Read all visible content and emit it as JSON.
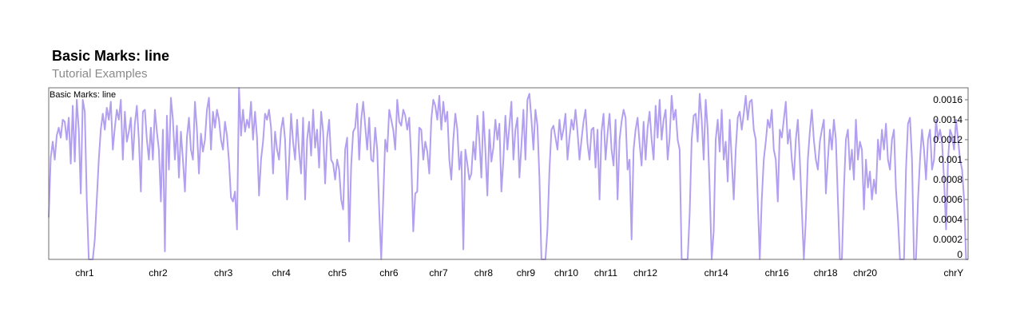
{
  "header": {
    "title": "Basic Marks: line",
    "subtitle": "Tutorial Examples"
  },
  "chart_data": {
    "type": "line",
    "track_label": "Basic Marks: line",
    "line_color": "#b39ff0",
    "y_ticks": [
      0,
      0.0002,
      0.0004,
      0.0006,
      0.0008,
      0.001,
      0.0012,
      0.0014,
      0.0016
    ],
    "y_tick_labels": [
      "0",
      "0.0002",
      "0.0004",
      "0.0006",
      "0.0008",
      "0.001",
      "0.0012",
      "0.0014",
      "0.0016"
    ],
    "ylim": [
      0,
      0.00172
    ],
    "x_labels": [
      {
        "label": "chr1",
        "pos": 0.039
      },
      {
        "label": "chr2",
        "pos": 0.119
      },
      {
        "label": "chr3",
        "pos": 0.19
      },
      {
        "label": "chr4",
        "pos": 0.253
      },
      {
        "label": "chr5",
        "pos": 0.314
      },
      {
        "label": "chr6",
        "pos": 0.37
      },
      {
        "label": "chr7",
        "pos": 0.424
      },
      {
        "label": "chr8",
        "pos": 0.473
      },
      {
        "label": "chr9",
        "pos": 0.519
      },
      {
        "label": "chr10",
        "pos": 0.563
      },
      {
        "label": "chr11",
        "pos": 0.606
      },
      {
        "label": "chr12",
        "pos": 0.649
      },
      {
        "label": "chr14",
        "pos": 0.726
      },
      {
        "label": "chr16",
        "pos": 0.792
      },
      {
        "label": "chr18",
        "pos": 0.845
      },
      {
        "label": "chr20",
        "pos": 0.888
      },
      {
        "label": "chrY",
        "pos": 0.995
      }
    ],
    "x_zero_ranges": [
      [
        0.039,
        0.045
      ],
      [
        0.338,
        0.341
      ],
      [
        0.508,
        0.518
      ],
      [
        0.668,
        0.678
      ],
      [
        0.713,
        0.719
      ],
      [
        0.787,
        0.793
      ],
      [
        0.836,
        0.842
      ],
      [
        0.895,
        0.902
      ],
      [
        0.914,
        0.918
      ],
      [
        0.992,
        1.0
      ]
    ],
    "values": [
      0.00042,
      0.00102,
      0.00118,
      0.001,
      0.00124,
      0.00132,
      0.00122,
      0.0014,
      0.00138,
      0.0012,
      0.00142,
      0.00096,
      0.00154,
      0.00098,
      0.0016,
      0.0013,
      0.00066,
      0.0016,
      0.00148,
      0.0006,
      0.0,
      0.0,
      0.0,
      0.0002,
      0.0006,
      0.001,
      0.0013,
      0.00146,
      0.0013,
      0.00152,
      0.0014,
      0.00158,
      0.0011,
      0.00132,
      0.0015,
      0.0014,
      0.0016,
      0.001,
      0.00148,
      0.00118,
      0.00128,
      0.00142,
      0.001,
      0.00136,
      0.00154,
      0.0012,
      0.00068,
      0.00148,
      0.0015,
      0.0012,
      0.001,
      0.00132,
      0.001,
      0.0015,
      0.00128,
      0.0011,
      0.00058,
      0.0013,
      8e-05,
      0.00144,
      0.0009,
      0.00162,
      0.0014,
      0.001,
      0.00134,
      0.00082,
      0.00128,
      0.001,
      0.00068,
      0.00122,
      0.00142,
      0.0011,
      0.001,
      0.00158,
      0.0013,
      0.00086,
      0.00126,
      0.00108,
      0.0012,
      0.0015,
      0.00162,
      0.0011,
      0.00148,
      0.00132,
      0.0015,
      0.0014,
      0.0012,
      0.0011,
      0.00138,
      0.00124,
      0.00098,
      0.00062,
      0.00058,
      0.00068,
      0.0003,
      0.00172,
      0.00124,
      0.0015,
      0.00128,
      0.0014,
      0.00132,
      0.00158,
      0.0012,
      0.00148,
      0.00122,
      0.00064,
      0.001,
      0.00118,
      0.00146,
      0.0014,
      0.0015,
      0.00132,
      0.00086,
      0.00128,
      0.0011,
      0.001,
      0.0013,
      0.00142,
      0.0012,
      0.0006,
      0.00098,
      0.00146,
      0.00118,
      0.001,
      0.0014,
      0.00108,
      0.00086,
      0.00142,
      0.0006,
      0.0012,
      0.00138,
      0.00104,
      0.0015,
      0.00112,
      0.0013,
      0.00092,
      0.00148,
      0.00128,
      0.00076,
      0.00122,
      0.0014,
      0.001,
      0.00096,
      0.0008,
      0.001,
      0.0009,
      0.0006,
      0.0005,
      0.0011,
      0.00122,
      0.00018,
      0.00094,
      0.00128,
      0.00132,
      0.00156,
      0.001,
      0.0014,
      0.00158,
      0.00134,
      0.0011,
      0.00142,
      0.001,
      0.00098,
      0.00132,
      0.0011,
      0.0005,
      0.0,
      0.0006,
      0.0012,
      0.00108,
      0.0015,
      0.0014,
      0.0013,
      0.0011,
      0.0016,
      0.00138,
      0.00134,
      0.0015,
      0.00144,
      0.0013,
      0.00142,
      0.001,
      0.00028,
      0.00066,
      0.00068,
      0.00132,
      0.0013,
      0.001,
      0.00118,
      0.00108,
      0.00086,
      0.0014,
      0.0016,
      0.00154,
      0.0014,
      0.00164,
      0.0013,
      0.00158,
      0.00138,
      0.00148,
      0.001,
      0.0008,
      0.0012,
      0.00146,
      0.0013,
      0.0009,
      0.00108,
      0.0001,
      0.0011,
      0.00096,
      0.0008,
      0.00086,
      0.00118,
      0.001,
      0.00144,
      0.0012,
      0.00082,
      0.00148,
      0.0011,
      0.00064,
      0.0013,
      0.00098,
      0.00112,
      0.0014,
      0.0012,
      0.00136,
      0.00068,
      0.001,
      0.00144,
      0.0011,
      0.00134,
      0.00158,
      0.001,
      0.0013,
      0.00142,
      0.00082,
      0.00114,
      0.0015,
      0.001,
      0.0016,
      0.00166,
      0.0014,
      0.0011,
      0.0015,
      0.00134,
      0.00082,
      0.0,
      0.0,
      0.0,
      0.0003,
      0.0009,
      0.0013,
      0.00134,
      0.00122,
      0.0011,
      0.0014,
      0.0012,
      0.0013,
      0.00146,
      0.001,
      0.00122,
      0.0014,
      0.0013,
      0.0015,
      0.00128,
      0.001,
      0.0012,
      0.00138,
      0.0015,
      0.00116,
      0.001,
      0.0013,
      0.00132,
      0.00092,
      0.0013,
      0.0006,
      0.00128,
      0.00146,
      0.001,
      0.00126,
      0.00146,
      0.0011,
      0.00094,
      0.0014,
      0.0006,
      0.0012,
      0.00138,
      0.0015,
      0.00142,
      0.0009,
      0.001,
      0.0002,
      0.0011,
      0.0013,
      0.00142,
      0.00116,
      0.00094,
      0.00138,
      0.001,
      0.00132,
      0.00148,
      0.0012,
      0.001,
      0.00154,
      0.00122,
      0.0016,
      0.0012,
      0.0014,
      0.0015,
      0.001,
      0.00122,
      0.00164,
      0.0014,
      0.0015,
      0.0012,
      0.0011,
      0.0,
      0.0,
      0.0,
      0.0,
      0.00046,
      0.0012,
      0.00144,
      0.00146,
      0.00118,
      0.00166,
      0.0014,
      0.001,
      0.0016,
      0.0013,
      0.0007,
      0.0,
      0.00028,
      0.0012,
      0.0014,
      0.00108,
      0.0015,
      0.001,
      0.00118,
      0.00078,
      0.0014,
      0.001,
      0.0006,
      0.0011,
      0.00142,
      0.00148,
      0.0013,
      0.00146,
      0.00164,
      0.0014,
      0.00158,
      0.0016,
      0.0013,
      0.0012,
      0.0006,
      0.0,
      0.0006,
      0.001,
      0.00118,
      0.0014,
      0.00132,
      0.0015,
      0.0011,
      0.001,
      0.00058,
      0.0013,
      0.00122,
      0.0014,
      0.00158,
      0.00116,
      0.0013,
      0.001,
      0.0008,
      0.0012,
      0.0014,
      0.001,
      0.0005,
      0.0,
      0.0004,
      0.001,
      0.00128,
      0.0015,
      0.0012,
      0.001,
      0.0009,
      0.00118,
      0.0013,
      0.0014,
      0.00066,
      0.001,
      0.0013,
      0.0011,
      0.0014,
      0.0012,
      0.0006,
      0.0,
      0.0,
      0.0007,
      0.0012,
      0.0013,
      0.0009,
      0.0011,
      0.0008,
      0.0014,
      0.001,
      0.00118,
      0.0011,
      0.0005,
      0.001,
      0.00072,
      0.00088,
      0.0006,
      0.0008,
      0.00066,
      0.0012,
      0.001,
      0.0013,
      0.0011,
      0.00136,
      0.001,
      0.0009,
      0.0012,
      0.0013,
      0.0007,
      0.0004,
      0.0,
      0.0,
      0.0,
      0.0009,
      0.00136,
      0.00142,
      0.001,
      0.0,
      0.0,
      0.0006,
      0.001,
      0.0013,
      0.0011,
      0.0008,
      0.0012,
      0.0013,
      0.0009,
      0.001,
      0.0014,
      0.0012,
      0.0013,
      0.00118,
      0.0008,
      0.0003,
      0.001,
      0.0013,
      0.00124,
      0.0011,
      0.0014,
      0.0012,
      0.001,
      0.0009,
      0.0006,
      0.0,
      0.0
    ]
  }
}
